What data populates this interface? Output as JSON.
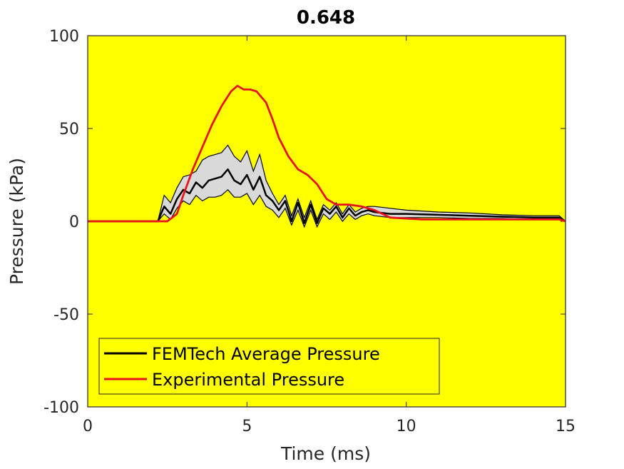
{
  "chart_data": {
    "type": "line",
    "title": "0.648",
    "xlabel": "Time (ms)",
    "ylabel": "Pressure (kPa)",
    "xlim": [
      0,
      15
    ],
    "ylim": [
      -100,
      100
    ],
    "xticks": [
      0,
      5,
      10,
      15
    ],
    "yticks": [
      -100,
      -50,
      0,
      50,
      100
    ],
    "xtick_labels": [
      "0",
      "5",
      "10",
      "15"
    ],
    "ytick_labels": [
      "-100",
      "-50",
      "0",
      "50",
      "100"
    ],
    "legend_position": "bottom-left",
    "colors": {
      "background": "#ffff00",
      "band": "#d9d9d9",
      "fem": "#000000",
      "exp": "#e8141b"
    },
    "series": [
      {
        "name": "FEMTech Average Pressure",
        "color": "#000000",
        "x": [
          0,
          2.2,
          2.4,
          2.6,
          2.8,
          3.0,
          3.2,
          3.4,
          3.6,
          3.8,
          4.0,
          4.2,
          4.4,
          4.6,
          4.8,
          5.0,
          5.2,
          5.4,
          5.6,
          5.8,
          6.0,
          6.2,
          6.4,
          6.6,
          6.8,
          7.0,
          7.2,
          7.4,
          7.6,
          7.8,
          8.0,
          8.2,
          8.4,
          8.6,
          8.8,
          9.0,
          9.5,
          10,
          11,
          12,
          13,
          14,
          14.8,
          15
        ],
        "y": [
          0,
          0,
          8,
          4,
          12,
          17,
          15,
          21,
          18,
          22,
          23,
          24,
          28,
          22,
          20,
          25,
          17,
          24,
          14,
          11,
          6,
          11,
          0,
          10,
          -1,
          9,
          -1,
          7,
          4,
          8,
          2,
          7,
          3,
          5,
          6,
          5,
          4,
          4,
          3.5,
          3,
          2.5,
          2,
          2,
          0
        ],
        "band_upper": [
          0,
          0,
          14,
          10,
          18,
          24,
          25,
          27,
          33,
          35,
          36,
          37,
          41,
          35,
          32,
          38,
          27,
          36,
          22,
          15,
          9,
          14,
          3,
          12,
          2,
          11,
          1,
          9,
          6,
          10,
          4,
          9,
          5,
          7,
          8,
          8,
          7,
          6,
          5,
          4.5,
          3.5,
          3,
          3,
          0
        ],
        "band_lower": [
          0,
          0,
          4,
          1,
          7,
          11,
          9,
          14,
          11,
          13,
          13,
          14,
          17,
          13,
          13,
          15,
          9,
          14,
          8,
          6,
          2,
          7,
          -2,
          6,
          -3,
          6,
          -3,
          4,
          1,
          5,
          0,
          4,
          1,
          3,
          4,
          3,
          2,
          2,
          2,
          1.5,
          1.5,
          1,
          1,
          0
        ]
      },
      {
        "name": "Experimental Pressure",
        "color": "#e8141b",
        "x": [
          0,
          2.0,
          2.5,
          2.8,
          3.0,
          3.3,
          3.6,
          3.9,
          4.2,
          4.5,
          4.7,
          4.9,
          5.1,
          5.3,
          5.6,
          5.8,
          6.0,
          6.3,
          6.6,
          6.9,
          7.2,
          7.5,
          7.8,
          8.2,
          8.6,
          9.0,
          9.5,
          10,
          10.5,
          11,
          12,
          13,
          14,
          14.8,
          15
        ],
        "y": [
          0,
          0,
          0,
          4,
          14,
          28,
          40,
          52,
          62,
          70,
          73,
          71,
          71,
          70,
          64,
          55,
          45,
          35,
          28,
          25,
          20,
          12,
          9,
          9,
          8,
          6,
          2,
          1.5,
          1,
          1,
          1,
          1,
          1,
          1,
          0
        ]
      }
    ]
  }
}
